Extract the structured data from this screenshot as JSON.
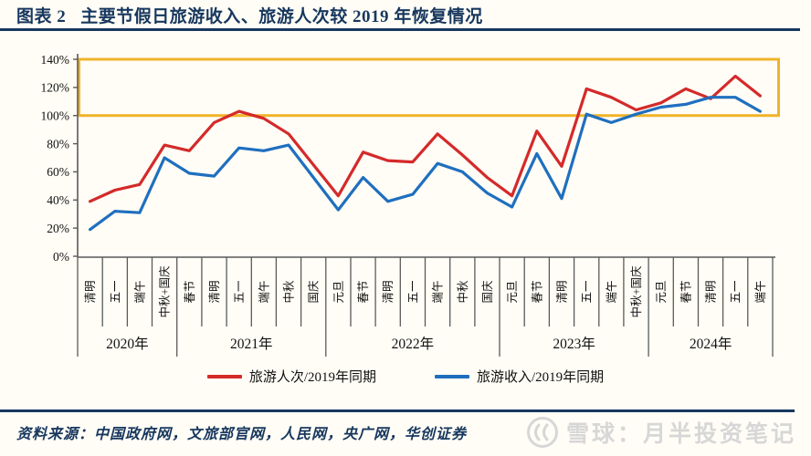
{
  "header": {
    "figure_label": "图表 2",
    "title": "主要节假日旅游收入、旅游人次较 2019 年恢复情况"
  },
  "chart_data": {
    "type": "line",
    "title": "主要节假日旅游收入、旅游人次较2019年恢复情况",
    "y_axis": {
      "min": 0,
      "max": 140,
      "step": 20,
      "unit": "%"
    },
    "grid": false,
    "legend_position": "bottom",
    "highlight_box": {
      "y_from": 100,
      "y_to": 140,
      "color": "#f0b429"
    },
    "groups": [
      {
        "label": "2020年",
        "holidays": [
          "清明",
          "五一",
          "端午",
          "中秋+国庆"
        ]
      },
      {
        "label": "2021年",
        "holidays": [
          "春节",
          "清明",
          "五一",
          "端午",
          "中秋",
          "国庆"
        ]
      },
      {
        "label": "2022年",
        "holidays": [
          "元旦",
          "春节",
          "清明",
          "五一",
          "端午",
          "中秋",
          "国庆"
        ]
      },
      {
        "label": "2023年",
        "holidays": [
          "元旦",
          "春节",
          "清明",
          "五一",
          "端午",
          "中秋+国庆"
        ]
      },
      {
        "label": "2024年",
        "holidays": [
          "元旦",
          "春节",
          "清明",
          "五一",
          "端午"
        ]
      }
    ],
    "categories": [
      "清明",
      "五一",
      "端午",
      "中秋+国庆",
      "春节",
      "清明",
      "五一",
      "端午",
      "中秋",
      "国庆",
      "元旦",
      "春节",
      "清明",
      "五一",
      "端午",
      "中秋",
      "国庆",
      "元旦",
      "春节",
      "清明",
      "五一",
      "端午",
      "中秋+国庆",
      "元旦",
      "春节",
      "清明",
      "五一",
      "端午"
    ],
    "series": [
      {
        "name": "旅游人次/2019年同期",
        "color": "#d42a2a",
        "values": [
          39,
          47,
          51,
          79,
          75,
          95,
          103,
          98,
          87,
          65,
          43,
          74,
          68,
          67,
          87,
          72,
          56,
          43,
          89,
          64,
          119,
          113,
          104,
          109,
          119,
          112,
          128,
          114
        ]
      },
      {
        "name": "旅游收入/2019年同期",
        "color": "#1f6fbf",
        "values": [
          19,
          32,
          31,
          70,
          59,
          57,
          77,
          75,
          79,
          56,
          33,
          56,
          39,
          44,
          66,
          60,
          45,
          35,
          73,
          41,
          101,
          95,
          101,
          106,
          108,
          113,
          113,
          103
        ]
      }
    ]
  },
  "footer": {
    "source_label": "资料来源：",
    "sources": "中国政府网，文旅部官网，人民网，央广网，华创证券",
    "watermark": "雪球：月半投资笔记"
  }
}
